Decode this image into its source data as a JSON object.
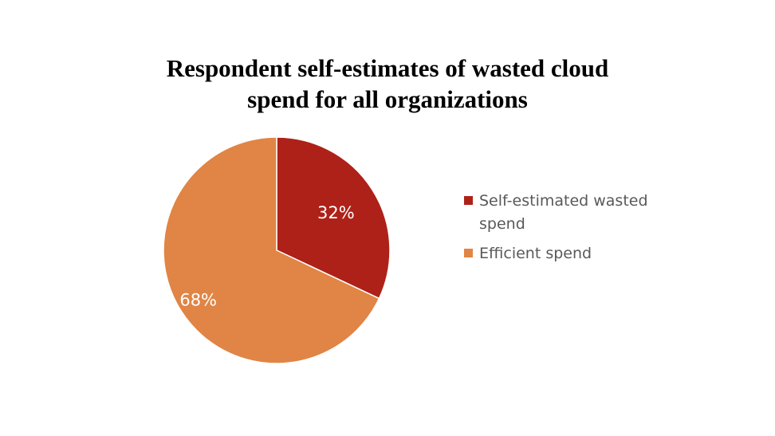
{
  "chart_data": {
    "type": "pie",
    "title_lines": [
      "Respondent self-estimates of wasted cloud",
      "spend for all organizations"
    ],
    "categories": [
      "Self-estimated wasted spend",
      "Efficient spend"
    ],
    "values": [
      32,
      68
    ],
    "data_labels": [
      "32%",
      "68%"
    ],
    "colors": [
      "#AE2118",
      "#E08545"
    ],
    "legend_position": "right",
    "legend_lines": [
      [
        "Self-estimated wasted",
        "spend"
      ],
      [
        "Efficient spend"
      ]
    ]
  }
}
